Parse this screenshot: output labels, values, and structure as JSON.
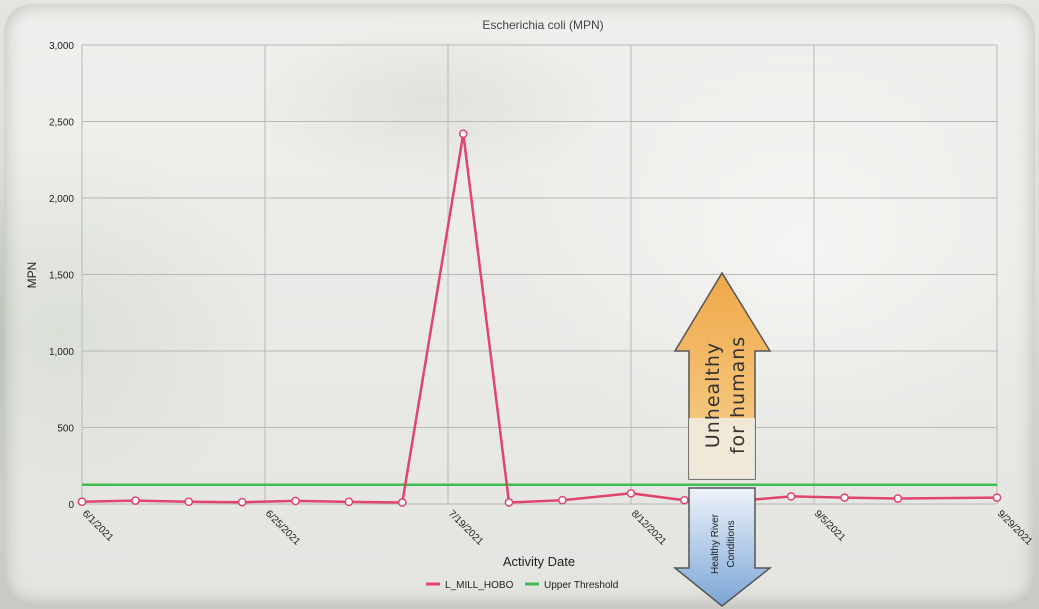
{
  "chart_data": {
    "type": "line",
    "title": "Escherichia coli (MPN)",
    "xlabel": "Activity Date",
    "ylabel": "MPN",
    "ylim": [
      0,
      3000
    ],
    "xlim": [
      "2021-06-01",
      "2021-09-29"
    ],
    "y_ticks": [
      "0",
      "500",
      "1,000",
      "1,500",
      "2,000",
      "2,500",
      "3,000"
    ],
    "y_tick_values": [
      0,
      500,
      1000,
      1500,
      2000,
      2500,
      3000
    ],
    "x_ticks": [
      "6/1/2021",
      "6/25/2021",
      "7/19/2021",
      "8/12/2021",
      "9/5/2021",
      "9/29/2021"
    ],
    "x_tick_dates": [
      "2021-06-01",
      "2021-06-25",
      "2021-07-19",
      "2021-08-12",
      "2021-09-05",
      "2021-09-29"
    ],
    "grid": true,
    "legend_position": "bottom",
    "series": [
      {
        "name": "L_MILL_HOBO",
        "color": "#e0456c",
        "points": [
          {
            "x": "2021-06-01",
            "y": 15
          },
          {
            "x": "2021-06-08",
            "y": 22
          },
          {
            "x": "2021-06-15",
            "y": 15
          },
          {
            "x": "2021-06-22",
            "y": 12
          },
          {
            "x": "2021-06-29",
            "y": 20
          },
          {
            "x": "2021-07-06",
            "y": 14
          },
          {
            "x": "2021-07-13",
            "y": 10
          },
          {
            "x": "2021-07-21",
            "y": 2420
          },
          {
            "x": "2021-07-27",
            "y": 10
          },
          {
            "x": "2021-08-03",
            "y": 25
          },
          {
            "x": "2021-08-12",
            "y": 70
          },
          {
            "x": "2021-08-19",
            "y": 25
          },
          {
            "x": "2021-08-26",
            "y": 20
          },
          {
            "x": "2021-09-02",
            "y": 50
          },
          {
            "x": "2021-09-09",
            "y": 42
          },
          {
            "x": "2021-09-16",
            "y": 36
          },
          {
            "x": "2021-09-29",
            "y": 42
          }
        ]
      },
      {
        "name": "Upper Threshold",
        "color": "#3fbf4f",
        "points": [
          {
            "x": "2021-06-01",
            "y": 126
          },
          {
            "x": "2021-09-29",
            "y": 126
          }
        ]
      }
    ]
  },
  "annotations": {
    "unhealthy_line1": "Unhealthy",
    "unhealthy_line2": "for humans",
    "healthy_line1": "Healthy River",
    "healthy_line2": "Conditions"
  }
}
